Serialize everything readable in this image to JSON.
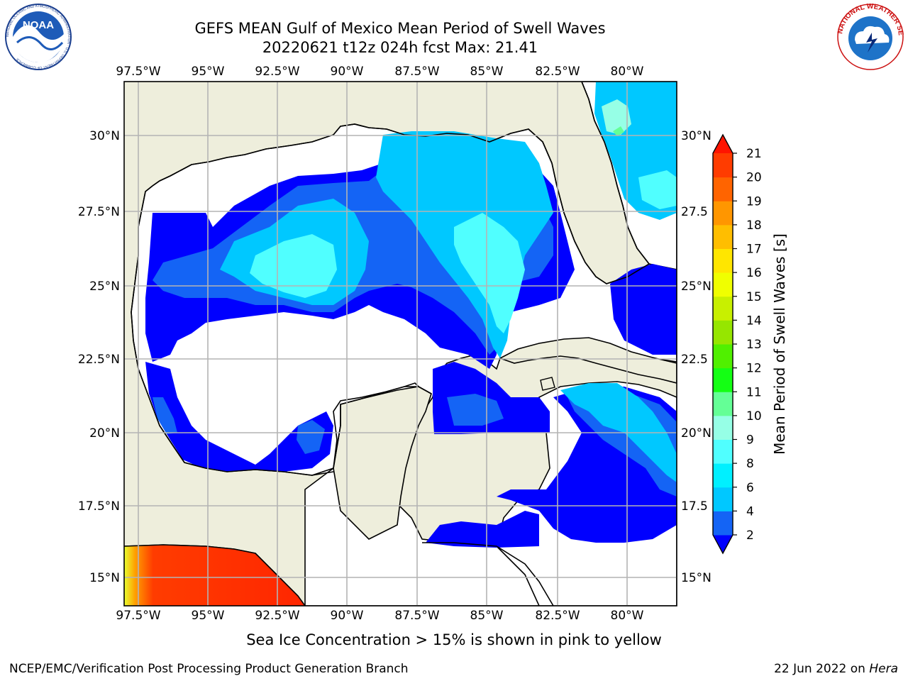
{
  "header": {
    "title_line1": "GEFS MEAN Gulf of Mexico Mean Period of Swell Waves",
    "title_line2": "20220621 t12z 024h fcst   Max: 21.41"
  },
  "logos": {
    "noaa_text": "NOAA",
    "noaa_ring": "NATIONAL OCEANIC AND ATMOSPHERIC ADMINISTRATION · U.S. DEPARTMENT OF COMMERCE",
    "nws_ring": "NATIONAL WEATHER SERVICE"
  },
  "map": {
    "lon_ticks": [
      "97.5°W",
      "95°W",
      "92.5°W",
      "90°W",
      "87.5°W",
      "85°W",
      "82.5°W",
      "80°W"
    ],
    "lat_ticks_left": [
      "30°N",
      "27.5°N",
      "25°N",
      "22.5°N",
      "20°N",
      "17.5°N",
      "15°N"
    ],
    "lat_ticks_right": [
      "30°N",
      "27.5",
      "25°N",
      "22.5",
      "20°N",
      "17.5",
      "15°N"
    ],
    "land_color": "#eeeedc",
    "grid": true
  },
  "colorbar": {
    "label": "Mean Period of Swell Waves [s]",
    "tick_labels": [
      "2",
      "4",
      "6",
      "8",
      "9",
      "10",
      "11",
      "12",
      "13",
      "14",
      "15",
      "16",
      "17",
      "18",
      "19",
      "20",
      "21"
    ],
    "colors": [
      "#0000ff",
      "#1464f5",
      "#00c8ff",
      "#00f0ff",
      "#50ffff",
      "#96ffe6",
      "#64ff96",
      "#14ff14",
      "#50f000",
      "#96e600",
      "#c8f000",
      "#f0ff00",
      "#ffe600",
      "#ffbe00",
      "#ff9600",
      "#ff6400",
      "#ff3c00",
      "#ff1400"
    ]
  },
  "caption": "Sea Ice Concentration > 15% is shown in pink to yellow",
  "footer": {
    "left": "NCEP/EMC/Verification Post Processing Product Generation Branch",
    "date": "22 Jun 2022 on ",
    "host": "Hera"
  }
}
